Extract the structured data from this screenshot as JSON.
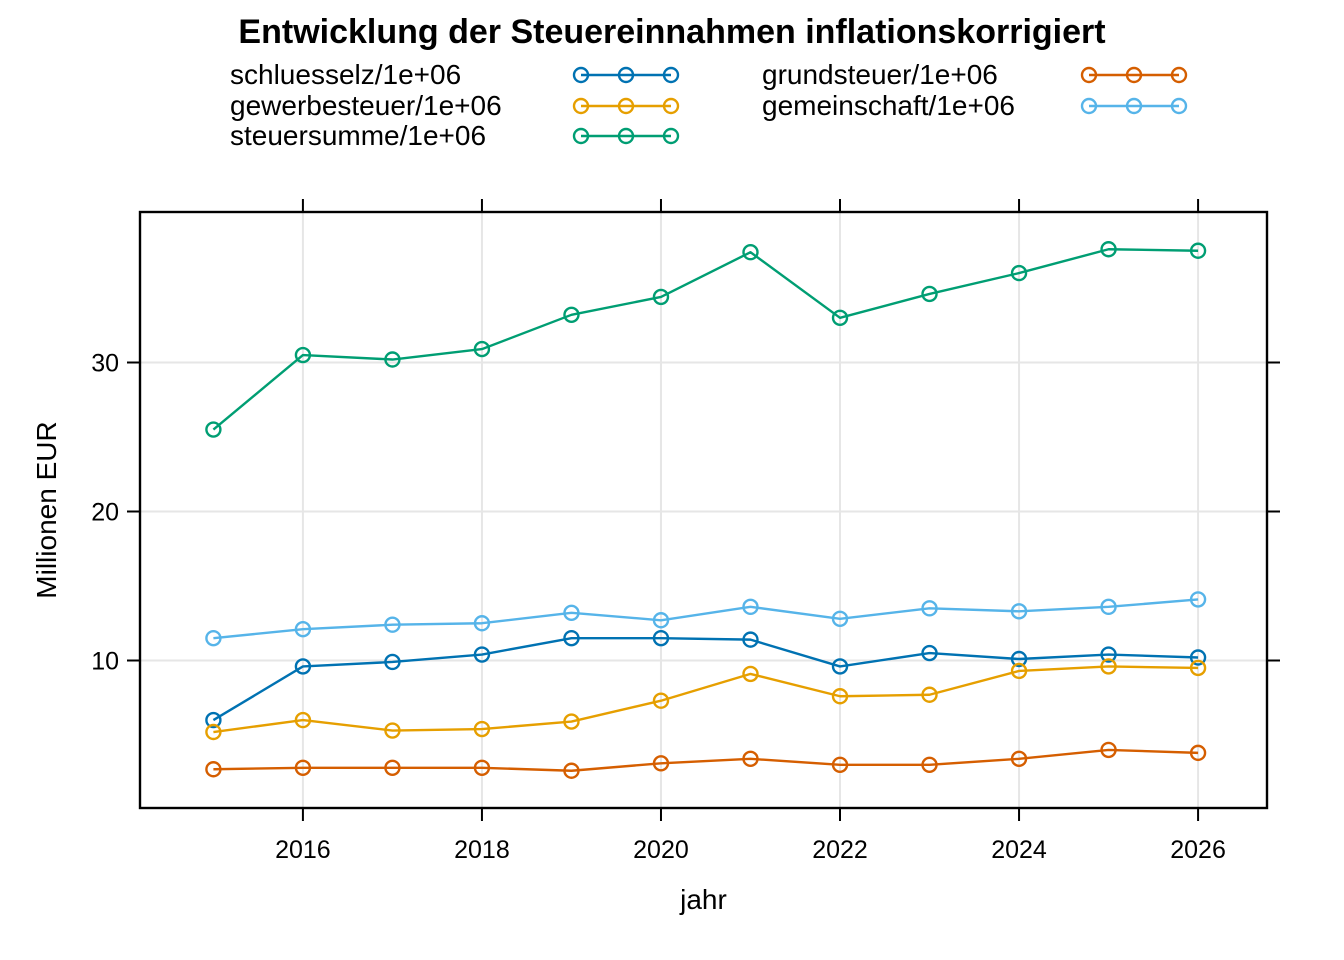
{
  "chart_data": {
    "type": "line",
    "title": "Entwicklung der Steuereinnahmen inflationskorrigiert",
    "xlabel": "jahr",
    "ylabel": "Millionen EUR",
    "x": [
      2015,
      2016,
      2017,
      2018,
      2019,
      2020,
      2021,
      2022,
      2023,
      2024,
      2025,
      2026
    ],
    "x_ticks": [
      2016,
      2018,
      2020,
      2022,
      2024,
      2026
    ],
    "y_ticks": [
      10,
      20,
      30
    ],
    "xlim": [
      2014.18,
      2026.77
    ],
    "ylim": [
      0.1,
      40.1
    ],
    "grid": true,
    "grid_color": "#E6E6E6",
    "legend_position": "top",
    "marker": "open-circle",
    "series": [
      {
        "id": "schluesselz",
        "name": "schluesselz/1e+06",
        "color": "#0072B2",
        "values": [
          6.0,
          9.6,
          9.9,
          10.4,
          11.5,
          11.5,
          11.4,
          9.6,
          10.5,
          10.1,
          10.4,
          10.2
        ]
      },
      {
        "id": "gewerbesteuer",
        "name": "gewerbesteuer/1e+06",
        "color": "#E69F00",
        "values": [
          5.2,
          6.0,
          5.3,
          5.4,
          5.9,
          7.3,
          9.1,
          7.6,
          7.7,
          9.3,
          9.6,
          9.5
        ]
      },
      {
        "id": "steuersumme",
        "name": "steuersumme/1e+06",
        "color": "#009E73",
        "values": [
          25.5,
          30.5,
          30.2,
          30.9,
          33.2,
          34.4,
          37.4,
          33.0,
          34.6,
          36.0,
          37.6,
          37.5
        ]
      },
      {
        "id": "grundsteuer",
        "name": "grundsteuer/1e+06",
        "color": "#D55E00",
        "values": [
          2.7,
          2.8,
          2.8,
          2.8,
          2.6,
          3.1,
          3.4,
          3.0,
          3.0,
          3.4,
          4.0,
          3.8
        ]
      },
      {
        "id": "gemeinschaft",
        "name": "gemeinschaft/1e+06",
        "color": "#56B4E9",
        "values": [
          11.5,
          12.1,
          12.4,
          12.5,
          13.2,
          12.7,
          13.6,
          12.8,
          13.5,
          13.3,
          13.6,
          14.1
        ]
      }
    ]
  }
}
